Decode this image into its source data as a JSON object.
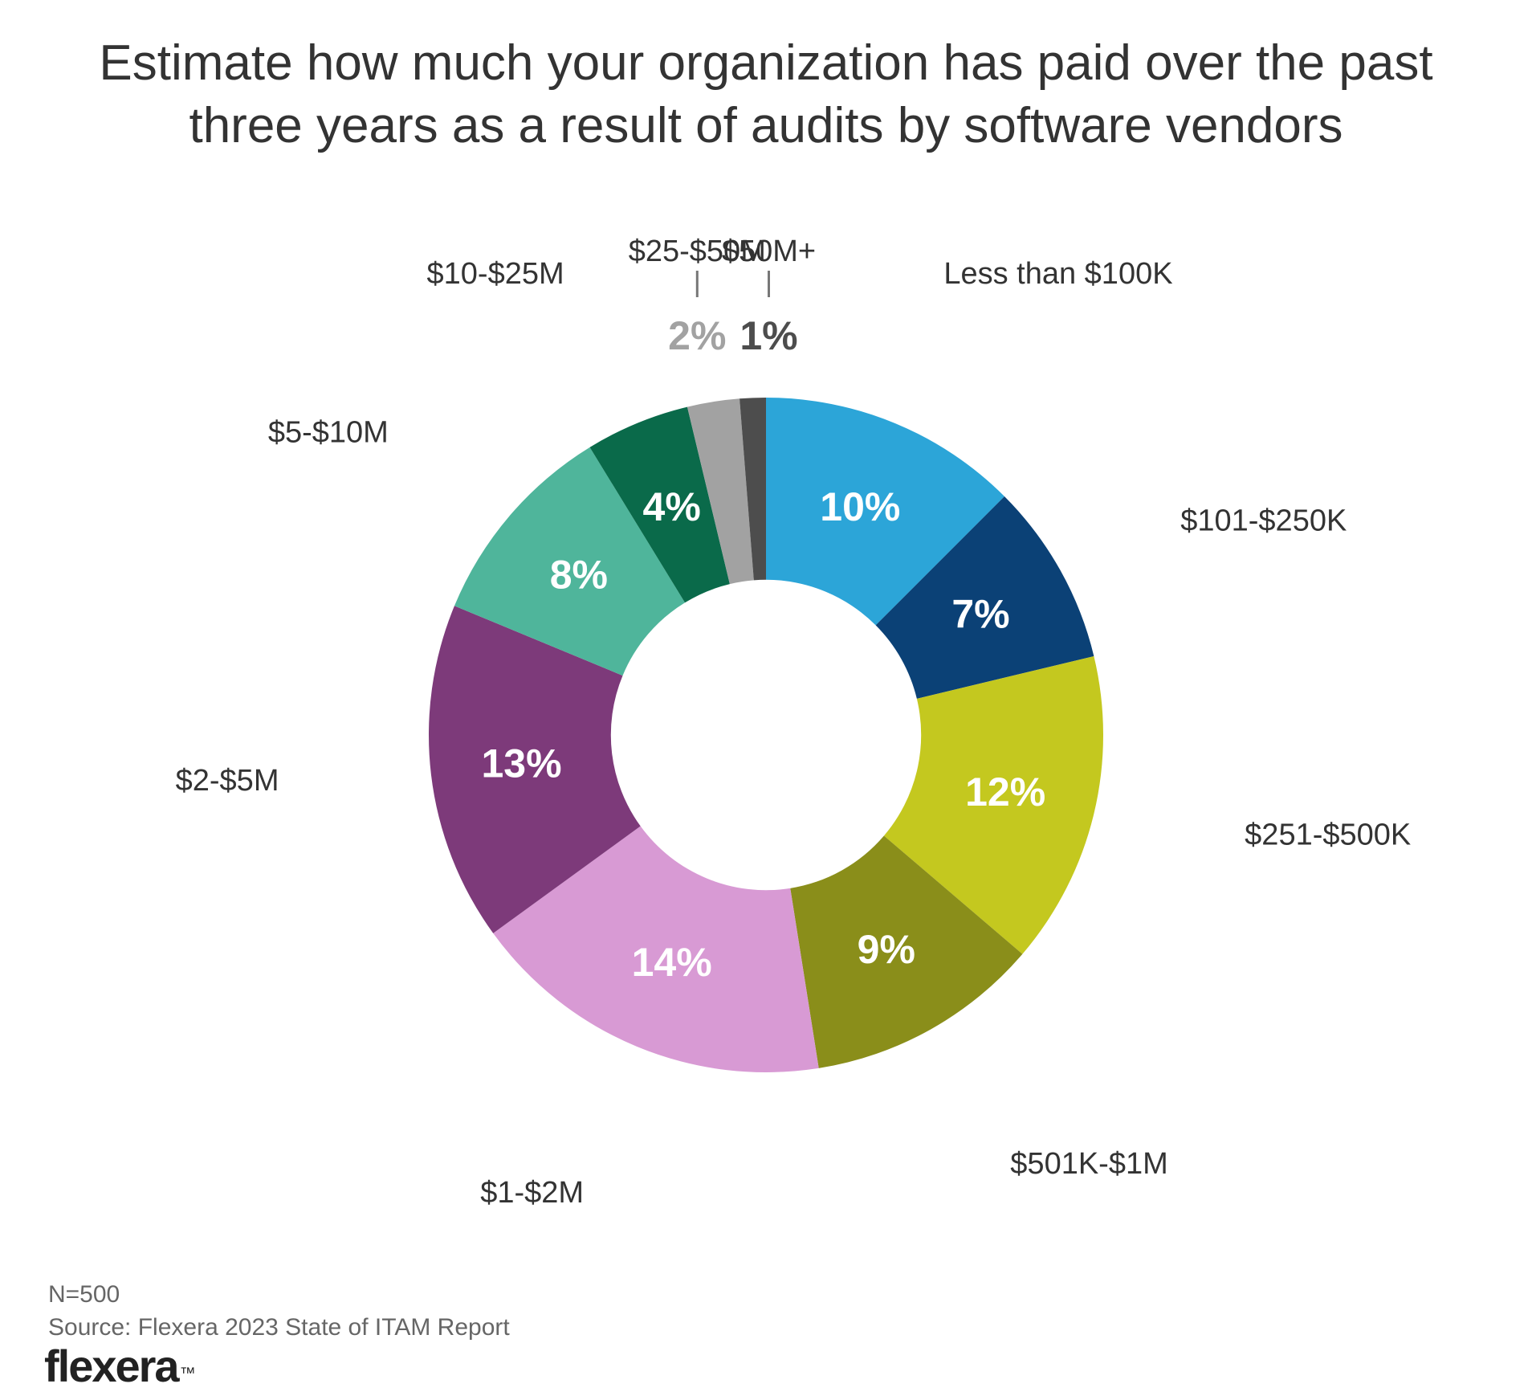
{
  "title": "Estimate how much your organization has paid over the past three years as a result of audits by software vendors",
  "footnote_n": "N=500",
  "footnote_source": "Source: Flexera 2023 State of ITAM Report",
  "logo_text": "flexera",
  "chart": {
    "type": "donut",
    "background_color": "#ffffff",
    "inner_radius_ratio": 0.46,
    "title_fontsize": 62,
    "value_fontsize": 50,
    "value_fontweight": 700,
    "value_color_default": "#ffffff",
    "label_fontsize": 38,
    "label_color": "#333333",
    "callout_value_fontsize": 50,
    "slices": [
      {
        "label": "Less than $100K",
        "value": 10,
        "display": "10%",
        "color": "#2ca5d8",
        "value_color": "#ffffff",
        "value_in_slice": true
      },
      {
        "label": "$101-$250K",
        "value": 7,
        "display": "7%",
        "color": "#0b4176",
        "value_color": "#ffffff",
        "value_in_slice": true
      },
      {
        "label": "$251-$500K",
        "value": 12,
        "display": "12%",
        "color": "#c4c81f",
        "value_color": "#ffffff",
        "value_in_slice": true
      },
      {
        "label": "$501K-$1M",
        "value": 9,
        "display": "9%",
        "color": "#8a8e1a",
        "value_color": "#ffffff",
        "value_in_slice": true
      },
      {
        "label": "$1-$2M",
        "value": 14,
        "display": "14%",
        "color": "#d89ad4",
        "value_color": "#ffffff",
        "value_in_slice": true
      },
      {
        "label": "$2-$5M",
        "value": 13,
        "display": "13%",
        "color": "#7d3a7a",
        "value_color": "#ffffff",
        "value_in_slice": true
      },
      {
        "label": "$5-$10M",
        "value": 8,
        "display": "8%",
        "color": "#4fb59b",
        "value_color": "#ffffff",
        "value_in_slice": true
      },
      {
        "label": "$10-$25M",
        "value": 4,
        "display": "4%",
        "color": "#0a6a4a",
        "value_color": "#ffffff",
        "value_in_slice": true
      },
      {
        "label": "$25-$50M",
        "value": 2,
        "display": "2%",
        "color": "#a2a2a2",
        "value_color": "#a2a2a2",
        "value_in_slice": false
      },
      {
        "label": "$50M+",
        "value": 1,
        "display": "1%",
        "color": "#4d4d4d",
        "value_color": "#4d4d4d",
        "value_in_slice": false
      }
    ]
  }
}
